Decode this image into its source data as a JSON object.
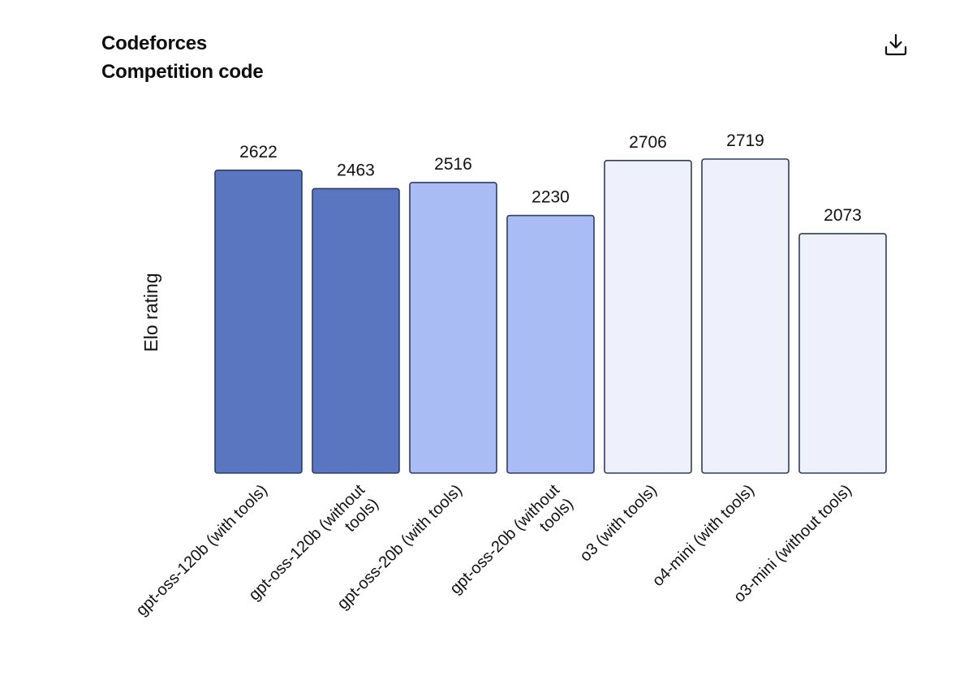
{
  "header": {
    "title": "Codeforces",
    "subtitle": "Competition code"
  },
  "toolbar": {
    "download_icon": "download-icon"
  },
  "chart_data": {
    "type": "bar",
    "title": "Codeforces",
    "subtitle": "Competition code",
    "xlabel": "",
    "ylabel": "Elo rating",
    "grid": false,
    "ylim": [
      0,
      2719
    ],
    "categories": [
      [
        "gpt-oss-120b (with tools)"
      ],
      [
        "gpt-oss-120b (without",
        "tools)"
      ],
      [
        "gpt-oss-20b (with tools)"
      ],
      [
        "gpt-oss-20b (without",
        "tools)"
      ],
      [
        "o3 (with tools)"
      ],
      [
        "o4-mini (with tools)"
      ],
      [
        "o3-mini (without tools)"
      ]
    ],
    "values": [
      2622,
      2463,
      2516,
      2230,
      2706,
      2719,
      2073
    ],
    "colors": [
      "#5b76c1",
      "#5b76c1",
      "#a9bdf4",
      "#a9bdf4",
      "#eef1fc",
      "#eef1fc",
      "#eef1fc"
    ],
    "border_color": "#2e3d63"
  }
}
